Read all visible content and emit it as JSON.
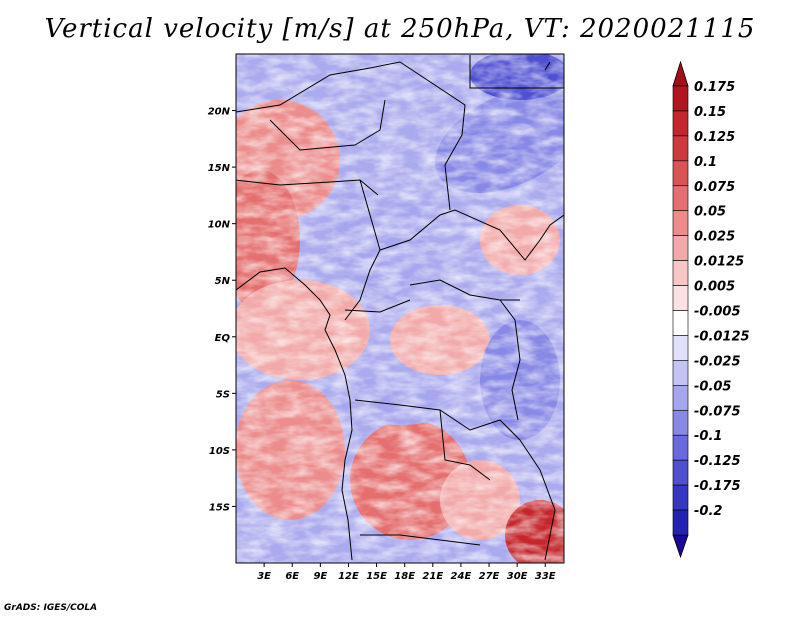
{
  "title": "Vertical velocity [m/s] at 250hPa, VT: 2020021115",
  "credit": "GrADS: IGES/COLA",
  "map": {
    "lon_range": [
      0,
      35
    ],
    "lat_range": [
      -20,
      25
    ],
    "lat_ticks": [
      {
        "value": 20,
        "label": "20N"
      },
      {
        "value": 15,
        "label": "15N"
      },
      {
        "value": 10,
        "label": "10N"
      },
      {
        "value": 5,
        "label": "5N"
      },
      {
        "value": 0,
        "label": "EQ"
      },
      {
        "value": -5,
        "label": "5S"
      },
      {
        "value": -10,
        "label": "10S"
      },
      {
        "value": -15,
        "label": "15S"
      }
    ],
    "lon_ticks": [
      {
        "value": 3,
        "label": "3E"
      },
      {
        "value": 6,
        "label": "6E"
      },
      {
        "value": 9,
        "label": "9E"
      },
      {
        "value": 12,
        "label": "12E"
      },
      {
        "value": 15,
        "label": "15E"
      },
      {
        "value": 18,
        "label": "18E"
      },
      {
        "value": 21,
        "label": "21E"
      },
      {
        "value": 24,
        "label": "24E"
      },
      {
        "value": 27,
        "label": "27E"
      },
      {
        "value": 30,
        "label": "30E"
      },
      {
        "value": 33,
        "label": "33E"
      }
    ]
  },
  "colorbar": {
    "levels": [
      {
        "label": "0.175",
        "color": "#b3141e"
      },
      {
        "label": "0.15",
        "color": "#c4262b"
      },
      {
        "label": "0.125",
        "color": "#d0393c"
      },
      {
        "label": "0.1",
        "color": "#dc5353"
      },
      {
        "label": "0.075",
        "color": "#e56e6e"
      },
      {
        "label": "0.05",
        "color": "#ec8c8c"
      },
      {
        "label": "0.025",
        "color": "#f2a9a9"
      },
      {
        "label": "0.0125",
        "color": "#f7c6c6"
      },
      {
        "label": "0.005",
        "color": "#fbe2e2"
      },
      {
        "label": "-0.005",
        "color": "#ffffff"
      },
      {
        "label": "-0.0125",
        "color": "#e0e0fa"
      },
      {
        "label": "-0.025",
        "color": "#c4c4f4"
      },
      {
        "label": "-0.05",
        "color": "#a6a6ee"
      },
      {
        "label": "-0.075",
        "color": "#8888e6"
      },
      {
        "label": "-0.1",
        "color": "#6a6ade"
      },
      {
        "label": "-0.125",
        "color": "#4f4fd2"
      },
      {
        "label": "-0.175",
        "color": "#3636c4"
      },
      {
        "label": "-0.2",
        "color": "#2222b4"
      }
    ],
    "top_color": "#a01018",
    "bottom_color": "#1a0a9a"
  }
}
